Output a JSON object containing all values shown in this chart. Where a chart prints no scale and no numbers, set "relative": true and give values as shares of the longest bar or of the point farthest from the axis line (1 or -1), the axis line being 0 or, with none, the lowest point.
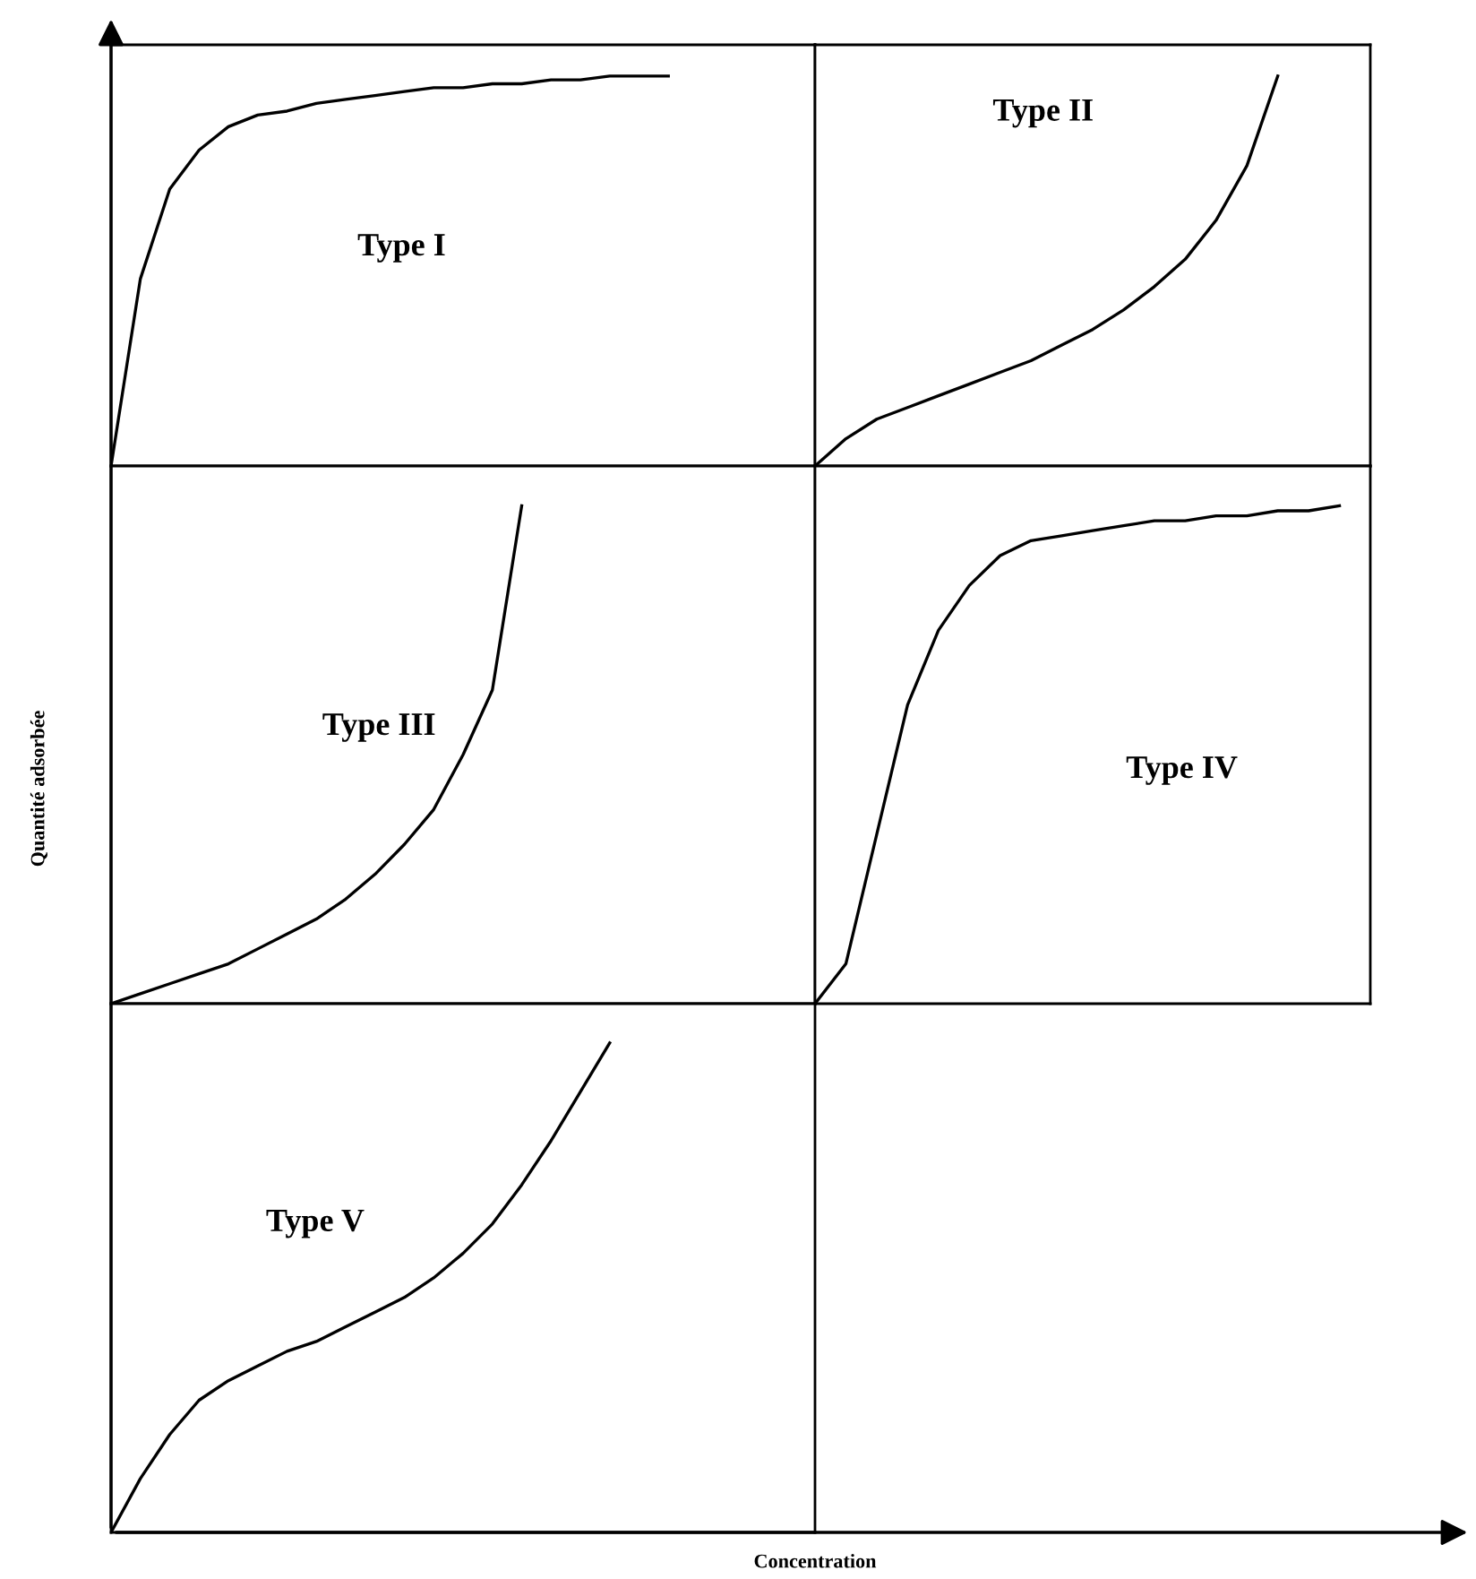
{
  "chart_data": [
    {
      "type": "line",
      "title": "Type I",
      "relative": true,
      "color": "#000000",
      "categories": [
        null,
        null,
        null,
        null,
        null,
        null,
        null,
        null,
        null,
        null,
        null,
        null,
        null,
        null,
        null,
        null,
        null,
        null,
        null,
        null,
        null,
        null,
        null,
        null,
        null
      ],
      "values": [
        0,
        0.48,
        0.71,
        0.81,
        0.87,
        0.9,
        0.91,
        0.93,
        0.94,
        0.95,
        0.96,
        0.97,
        0.97,
        0.98,
        0.98,
        0.99,
        0.99,
        1.0,
        1.0,
        1.0,
        null,
        null,
        null,
        null,
        null
      ]
    },
    {
      "type": "line",
      "title": "Type II",
      "relative": true,
      "color": "#000000",
      "categories": [
        null,
        null,
        null,
        null,
        null,
        null,
        null,
        null,
        null,
        null,
        null,
        null,
        null,
        null,
        null,
        null,
        null,
        null,
        null
      ],
      "values": [
        0,
        0.07,
        0.12,
        0.15,
        0.18,
        0.21,
        0.24,
        0.27,
        0.31,
        0.35,
        0.4,
        0.46,
        0.53,
        0.63,
        0.77,
        1.0,
        null,
        null,
        null
      ]
    },
    {
      "type": "line",
      "title": "Type III",
      "relative": true,
      "color": "#000000",
      "categories": [
        null,
        null,
        null,
        null,
        null,
        null,
        null,
        null,
        null,
        null,
        null,
        null,
        null,
        null,
        null,
        null,
        null,
        null,
        null,
        null,
        null,
        null,
        null,
        null,
        null
      ],
      "values": [
        0,
        0.02,
        0.04,
        0.06,
        0.08,
        0.11,
        0.14,
        0.17,
        0.21,
        0.26,
        0.32,
        0.39,
        0.5,
        0.63,
        1.0,
        null,
        null,
        null,
        null,
        null,
        null,
        null,
        null,
        null,
        null
      ]
    },
    {
      "type": "line",
      "title": "Type IV",
      "relative": true,
      "color": "#000000",
      "categories": [
        null,
        null,
        null,
        null,
        null,
        null,
        null,
        null,
        null,
        null,
        null,
        null,
        null,
        null,
        null,
        null,
        null,
        null,
        null
      ],
      "values": [
        0,
        0.08,
        0.34,
        0.6,
        0.75,
        0.84,
        0.9,
        0.93,
        0.94,
        0.95,
        0.96,
        0.97,
        0.97,
        0.98,
        0.98,
        0.99,
        0.99,
        1.0,
        null
      ]
    },
    {
      "type": "line",
      "title": "Type V",
      "relative": true,
      "color": "#000000",
      "xlabel": "Concentration",
      "ylabel": "Quantité adsorbée",
      "categories": [
        null,
        null,
        null,
        null,
        null,
        null,
        null,
        null,
        null,
        null,
        null,
        null,
        null,
        null,
        null,
        null,
        null,
        null,
        null,
        null,
        null,
        null,
        null,
        null,
        null
      ],
      "values": [
        0,
        0.11,
        0.2,
        0.27,
        0.31,
        0.34,
        0.37,
        0.39,
        0.42,
        0.45,
        0.48,
        0.52,
        0.57,
        0.63,
        0.71,
        0.8,
        0.9,
        1.0,
        null,
        null,
        null,
        null,
        null,
        null,
        null
      ]
    }
  ]
}
